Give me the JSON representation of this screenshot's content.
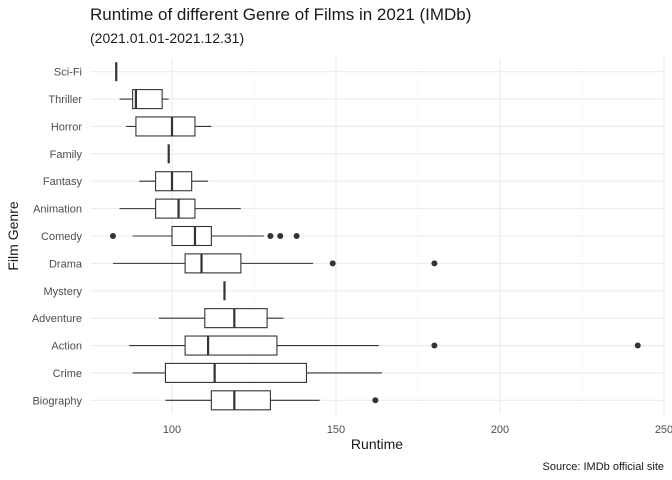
{
  "chart_data": {
    "type": "boxplot",
    "title": "Runtime of different Genre of Films in 2021 (IMDb)",
    "subtitle": "(2021.01.01-2021.12.31)",
    "xlabel": "Runtime",
    "ylabel": "Film Genre",
    "caption": "Source: IMDb official site",
    "xlim": [
      75,
      250
    ],
    "xticks": [
      100,
      150,
      200,
      250
    ],
    "x_minor_ticks": [
      125,
      175,
      225
    ],
    "grid": true,
    "legend": "none",
    "colors": {
      "line": "#333333",
      "box_fill": "#ffffff",
      "grid": "#ebebeb"
    },
    "categories": [
      "Sci-Fi",
      "Thriller",
      "Horror",
      "Family",
      "Fantasy",
      "Animation",
      "Comedy",
      "Drama",
      "Mystery",
      "Adventure",
      "Action",
      "Crime",
      "Biography"
    ],
    "boxes": [
      {
        "category": "Sci-Fi",
        "min": 83,
        "q1": 83,
        "median": 83,
        "q3": 83,
        "max": 83,
        "outliers": []
      },
      {
        "category": "Thriller",
        "min": 84,
        "q1": 88,
        "median": 89,
        "q3": 97,
        "max": 99,
        "outliers": []
      },
      {
        "category": "Horror",
        "min": 86,
        "q1": 89,
        "median": 100,
        "q3": 107,
        "max": 112,
        "outliers": []
      },
      {
        "category": "Family",
        "min": 99,
        "q1": 99,
        "median": 99,
        "q3": 99,
        "max": 99,
        "outliers": []
      },
      {
        "category": "Fantasy",
        "min": 90,
        "q1": 95,
        "median": 100,
        "q3": 106,
        "max": 111,
        "outliers": []
      },
      {
        "category": "Animation",
        "min": 84,
        "q1": 95,
        "median": 102,
        "q3": 107,
        "max": 121,
        "outliers": []
      },
      {
        "category": "Comedy",
        "min": 88,
        "q1": 100,
        "median": 107,
        "q3": 112,
        "max": 128,
        "outliers": [
          82,
          130,
          133,
          138
        ]
      },
      {
        "category": "Drama",
        "min": 82,
        "q1": 104,
        "median": 109,
        "q3": 121,
        "max": 143,
        "outliers": [
          149,
          180
        ]
      },
      {
        "category": "Mystery",
        "min": 116,
        "q1": 116,
        "median": 116,
        "q3": 116,
        "max": 116,
        "outliers": []
      },
      {
        "category": "Adventure",
        "min": 96,
        "q1": 110,
        "median": 119,
        "q3": 129,
        "max": 134,
        "outliers": []
      },
      {
        "category": "Action",
        "min": 87,
        "q1": 104,
        "median": 111,
        "q3": 132,
        "max": 163,
        "outliers": [
          180,
          242
        ]
      },
      {
        "category": "Crime",
        "min": 88,
        "q1": 98,
        "median": 113,
        "q3": 141,
        "max": 164,
        "outliers": []
      },
      {
        "category": "Biography",
        "min": 98,
        "q1": 112,
        "median": 119,
        "q3": 130,
        "max": 145,
        "outliers": [
          162
        ]
      }
    ]
  }
}
